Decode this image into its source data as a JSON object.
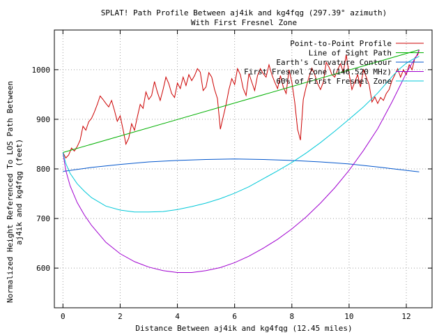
{
  "chart_data": {
    "type": "line",
    "title_line1": "SPLAT! Path Profile Between aj4ik and kg4fqg (297.39° azimuth)",
    "title_line2": "With First Fresnel Zone",
    "xlabel": "Distance Between aj4ik and kg4fqg (12.45 miles)",
    "ylabel_line1": "Normalized Height Referenced To LOS Path Between",
    "ylabel_line2": "aj4ik and kg4fqg (feet)",
    "xlim": [
      -0.3,
      12.9
    ],
    "ylim": [
      520,
      1080
    ],
    "x_ticks": [
      0,
      2,
      4,
      6,
      8,
      10,
      12
    ],
    "x_tick_labels": [
      "0",
      "2",
      "4",
      "6",
      "8",
      "10",
      "12"
    ],
    "y_ticks": [
      600,
      700,
      800,
      900,
      1000
    ],
    "y_tick_labels": [
      "600",
      "700",
      "800",
      "900",
      "1000"
    ],
    "grid": true,
    "legend_position": "top-right",
    "series": [
      {
        "name": "Point-to-Point Profile",
        "color": "#cc0000",
        "x": [
          0,
          0.1,
          0.2,
          0.3,
          0.4,
          0.5,
          0.6,
          0.7,
          0.8,
          0.9,
          1.0,
          1.1,
          1.2,
          1.3,
          1.4,
          1.5,
          1.6,
          1.7,
          1.8,
          1.9,
          2.0,
          2.1,
          2.2,
          2.3,
          2.4,
          2.5,
          2.6,
          2.7,
          2.8,
          2.9,
          3.0,
          3.1,
          3.2,
          3.3,
          3.4,
          3.5,
          3.6,
          3.7,
          3.8,
          3.9,
          4.0,
          4.1,
          4.2,
          4.3,
          4.4,
          4.5,
          4.6,
          4.7,
          4.8,
          4.9,
          5.0,
          5.1,
          5.2,
          5.3,
          5.4,
          5.5,
          5.6,
          5.7,
          5.8,
          5.9,
          6.0,
          6.1,
          6.2,
          6.3,
          6.4,
          6.5,
          6.6,
          6.7,
          6.8,
          6.9,
          7.0,
          7.1,
          7.2,
          7.3,
          7.4,
          7.5,
          7.6,
          7.7,
          7.8,
          7.9,
          8.0,
          8.1,
          8.2,
          8.3,
          8.4,
          8.5,
          8.6,
          8.7,
          8.8,
          8.9,
          9.0,
          9.1,
          9.2,
          9.3,
          9.4,
          9.5,
          9.6,
          9.7,
          9.8,
          9.9,
          10.0,
          10.1,
          10.2,
          10.3,
          10.4,
          10.5,
          10.6,
          10.7,
          10.8,
          10.9,
          11.0,
          11.1,
          11.2,
          11.3,
          11.4,
          11.5,
          11.6,
          11.7,
          11.8,
          11.9,
          12.0,
          12.1,
          12.2,
          12.3,
          12.4,
          12.45
        ],
        "y": [
          833,
          822,
          828,
          842,
          836,
          845,
          858,
          886,
          878,
          895,
          902,
          915,
          930,
          947,
          940,
          932,
          925,
          938,
          918,
          896,
          907,
          880,
          850,
          862,
          891,
          878,
          905,
          930,
          922,
          955,
          940,
          948,
          976,
          955,
          938,
          960,
          985,
          972,
          952,
          944,
          973,
          962,
          985,
          968,
          990,
          978,
          988,
          1002,
          995,
          958,
          965,
          994,
          985,
          960,
          942,
          880,
          905,
          930,
          960,
          982,
          970,
          1002,
          990,
          962,
          948,
          992,
          975,
          958,
          988,
          1002,
          992,
          985,
          1010,
          990,
          975,
          962,
          988,
          965,
          952,
          1000,
          975,
          935,
          880,
          858,
          940,
          965,
          985,
          1003,
          990,
          972,
          960,
          975,
          1015,
          1005,
          990,
          985,
          1000,
          1012,
          995,
          1030,
          992,
          960,
          975,
          990,
          965,
          1000,
          985,
          970,
          935,
          945,
          932,
          944,
          938,
          952,
          960,
          978,
          990,
          1002,
          985,
          1000,
          990,
          1010,
          1000,
          1024,
          1030,
          1040
        ]
      },
      {
        "name": "Line of Sight Path",
        "color": "#00b000",
        "x": [
          0,
          12.45
        ],
        "y": [
          833,
          1040
        ]
      },
      {
        "name": "Earth's Curvature Contour",
        "color": "#0055cc",
        "x": [
          0,
          1,
          2,
          3,
          4,
          5,
          6,
          7,
          8,
          9,
          10,
          11,
          12,
          12.45
        ],
        "y": [
          795,
          803,
          809,
          814,
          817,
          819,
          820,
          819,
          817,
          814,
          810,
          804,
          797,
          794
        ]
      },
      {
        "name": "First Fresnel Zone (146.520 MHz)",
        "color": "#a000d0",
        "x": [
          0,
          0.1,
          0.25,
          0.5,
          0.75,
          1.0,
          1.5,
          2.0,
          2.5,
          3.0,
          3.5,
          4.0,
          4.5,
          5.0,
          5.5,
          6.0,
          6.5,
          7.0,
          7.5,
          8.0,
          8.5,
          9.0,
          9.5,
          10.0,
          10.5,
          11.0,
          11.5,
          11.75,
          12.0,
          12.2,
          12.35,
          12.45
        ],
        "y": [
          833,
          797,
          766,
          732,
          707,
          686,
          652,
          629,
          613,
          602,
          595,
          591,
          591,
          595,
          601,
          611,
          624,
          640,
          658,
          679,
          703,
          731,
          762,
          797,
          837,
          881,
          935,
          964,
          993,
          1013,
          1027,
          1040
        ]
      },
      {
        "name": "60% of First Fresnel Zone",
        "color": "#00c8d8",
        "x": [
          0,
          0.1,
          0.25,
          0.5,
          0.75,
          1.0,
          1.5,
          2.0,
          2.5,
          3.0,
          3.5,
          4.0,
          4.5,
          5.0,
          5.5,
          6.0,
          6.5,
          7.0,
          7.5,
          8.0,
          8.5,
          9.0,
          9.5,
          10.0,
          10.5,
          11.0,
          11.5,
          11.75,
          12.0,
          12.2,
          12.35,
          12.45
        ],
        "y": [
          833,
          811,
          791,
          770,
          755,
          742,
          725,
          717,
          713,
          713,
          714,
          718,
          724,
          731,
          740,
          751,
          764,
          780,
          796,
          813,
          832,
          853,
          876,
          900,
          925,
          953,
          986,
          1001,
          1013,
          1020,
          1024,
          1027
        ]
      }
    ]
  }
}
